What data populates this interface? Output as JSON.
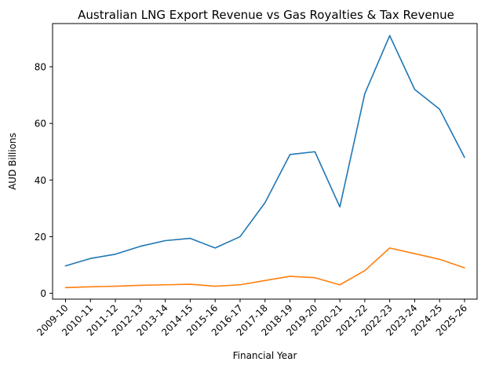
{
  "chart_data": {
    "type": "line",
    "title": "Australian LNG Export Revenue vs Gas Royalties & Tax Revenue",
    "xlabel": "Financial Year",
    "ylabel": "AUD Billions",
    "categories": [
      "2009-10",
      "2010-11",
      "2011-12",
      "2012-13",
      "2013-14",
      "2014-15",
      "2015-16",
      "2016-17",
      "2017-18",
      "2018-19",
      "2019-20",
      "2020-21",
      "2021-22",
      "2022-23",
      "2023-24",
      "2024-25",
      "2025-26"
    ],
    "ylim": [
      -2.06,
      95.26
    ],
    "yticks": [
      0,
      20,
      40,
      60,
      80
    ],
    "grid": false,
    "series": [
      {
        "color": "#1f77b4",
        "values": [
          9.7,
          12.3,
          13.8,
          16.6,
          18.6,
          19.4,
          16.0,
          20.0,
          32.0,
          49.0,
          50.0,
          30.5,
          70.5,
          91.0,
          72.0,
          65.0,
          48.0
        ]
      },
      {
        "color": "#ff7f0e",
        "values": [
          2.0,
          2.3,
          2.5,
          2.8,
          3.0,
          3.2,
          2.5,
          3.0,
          4.5,
          6.0,
          5.5,
          3.0,
          8.0,
          16.0,
          14.0,
          12.0,
          9.0
        ]
      }
    ]
  }
}
